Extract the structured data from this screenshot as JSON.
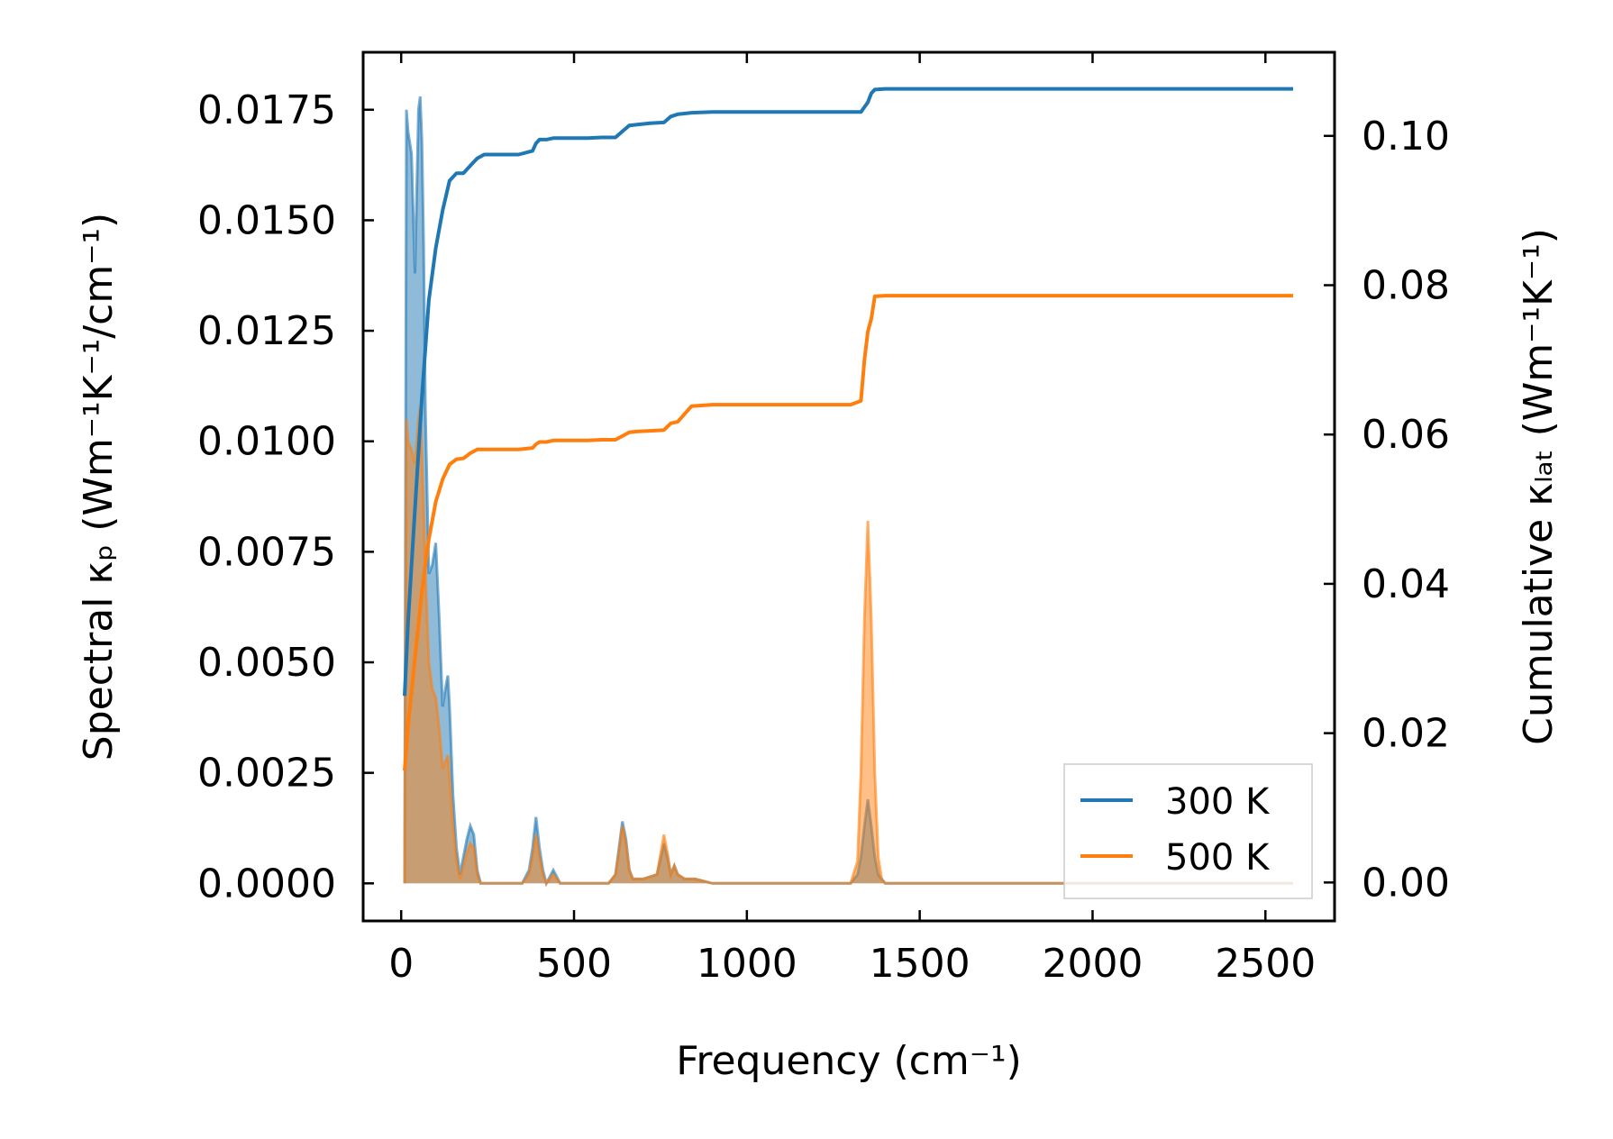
{
  "chart_data": {
    "type": "line",
    "xlabel": "Frequency (cm⁻¹)",
    "ylabel_left": "Spectral κₚ (Wm⁻¹K⁻¹/cm⁻¹)",
    "ylabel_right": "Cumulative κₗₐₜ (Wm⁻¹K⁻¹)",
    "xlim": [
      -110,
      2700
    ],
    "ylim_left": [
      -0.00085,
      0.0188
    ],
    "ylim_right": [
      -0.00515,
      0.1112
    ],
    "x_ticks": [
      0,
      500,
      1000,
      1500,
      2000,
      2500
    ],
    "x_tick_labels": [
      "0",
      "500",
      "1000",
      "1500",
      "2000",
      "2500"
    ],
    "y_left_ticks": [
      0,
      0.0025,
      0.005,
      0.0075,
      0.01,
      0.0125,
      0.015,
      0.0175
    ],
    "y_left_tick_labels": [
      "0.0000",
      "0.0025",
      "0.0050",
      "0.0075",
      "0.0100",
      "0.0125",
      "0.0150",
      "0.0175"
    ],
    "y_right_ticks": [
      0,
      0.02,
      0.04,
      0.06,
      0.08,
      0.1
    ],
    "y_right_tick_labels": [
      "0.00",
      "0.02",
      "0.04",
      "0.06",
      "0.08",
      "0.10"
    ],
    "legend_position": "lower-right",
    "series": [
      {
        "name": "300 K",
        "color": "#1f77b4",
        "cumulative": {
          "x": [
            10,
            20,
            40,
            60,
            80,
            100,
            120,
            140,
            160,
            180,
            200,
            220,
            240,
            260,
            280,
            300,
            340,
            380,
            390,
            400,
            420,
            440,
            460,
            500,
            540,
            580,
            620,
            640,
            660,
            680,
            720,
            760,
            780,
            800,
            840,
            900,
            1000,
            1300,
            1330,
            1350,
            1360,
            1370,
            1400,
            1500,
            2000,
            2580
          ],
          "y": [
            0.025,
            0.035,
            0.05,
            0.065,
            0.078,
            0.085,
            0.09,
            0.094,
            0.095,
            0.095,
            0.096,
            0.097,
            0.0975,
            0.0975,
            0.0975,
            0.0975,
            0.0975,
            0.098,
            0.099,
            0.0995,
            0.0995,
            0.0997,
            0.0997,
            0.0997,
            0.0997,
            0.0998,
            0.0998,
            0.1006,
            0.1014,
            0.1015,
            0.1017,
            0.1018,
            0.1026,
            0.1029,
            0.1031,
            0.1032,
            0.1032,
            0.1032,
            0.1032,
            0.1045,
            0.1057,
            0.1062,
            0.1063,
            0.1063,
            0.1063,
            0.1063
          ]
        },
        "spectral": {
          "x": [
            10,
            15,
            20,
            30,
            40,
            50,
            55,
            60,
            65,
            70,
            80,
            90,
            100,
            110,
            120,
            130,
            135,
            140,
            150,
            160,
            170,
            180,
            190,
            200,
            210,
            220,
            230,
            250,
            300,
            350,
            370,
            380,
            390,
            400,
            410,
            420,
            440,
            460,
            500,
            600,
            620,
            630,
            640,
            650,
            660,
            670,
            700,
            740,
            760,
            770,
            780,
            790,
            800,
            820,
            850,
            900,
            1000,
            1200,
            1300,
            1320,
            1330,
            1340,
            1350,
            1360,
            1370,
            1380,
            1390,
            1400,
            1500,
            2000,
            2580
          ],
          "y": [
            0.0,
            0.0175,
            0.017,
            0.0165,
            0.0138,
            0.0175,
            0.0178,
            0.0168,
            0.0145,
            0.0107,
            0.007,
            0.0072,
            0.0077,
            0.006,
            0.004,
            0.0045,
            0.0047,
            0.004,
            0.002,
            0.0008,
            0.0002,
            0.0006,
            0.001,
            0.0013,
            0.0011,
            0.0003,
            0.0,
            0.0,
            0.0,
            0.0,
            0.0003,
            0.0008,
            0.0015,
            0.0008,
            0.0003,
            0.0,
            0.0003,
            0.0,
            0.0,
            0.0,
            0.0002,
            0.0008,
            0.0014,
            0.001,
            0.0003,
            0.0001,
            0.0001,
            0.0002,
            0.0009,
            0.0006,
            0.0002,
            0.0004,
            0.0002,
            0.0001,
            0.0001,
            0.0,
            0.0,
            0.0,
            0.0,
            0.0002,
            0.0006,
            0.0013,
            0.0019,
            0.0013,
            0.0006,
            0.0002,
            0.0001,
            0.0,
            0.0,
            0.0,
            0.0
          ]
        }
      },
      {
        "name": "500 K",
        "color": "#ff7f0e",
        "cumulative": {
          "x": [
            10,
            20,
            40,
            60,
            80,
            100,
            120,
            140,
            160,
            180,
            200,
            220,
            240,
            260,
            280,
            300,
            340,
            380,
            390,
            400,
            420,
            440,
            460,
            500,
            540,
            580,
            620,
            640,
            660,
            680,
            720,
            760,
            780,
            800,
            840,
            900,
            1000,
            1300,
            1330,
            1340,
            1350,
            1360,
            1370,
            1400,
            1500,
            2000,
            2580
          ],
          "y": [
            0.015,
            0.021,
            0.03,
            0.039,
            0.046,
            0.051,
            0.054,
            0.056,
            0.0567,
            0.0568,
            0.0575,
            0.058,
            0.058,
            0.058,
            0.058,
            0.058,
            0.058,
            0.0582,
            0.0587,
            0.059,
            0.059,
            0.0592,
            0.0592,
            0.0592,
            0.0592,
            0.0593,
            0.0593,
            0.0598,
            0.0603,
            0.0604,
            0.0605,
            0.0606,
            0.0615,
            0.0617,
            0.0638,
            0.064,
            0.064,
            0.064,
            0.0645,
            0.07,
            0.0738,
            0.0755,
            0.0785,
            0.0786,
            0.0786,
            0.0786,
            0.0786
          ]
        },
        "spectral": {
          "x": [
            10,
            15,
            20,
            30,
            40,
            50,
            55,
            60,
            65,
            70,
            80,
            90,
            100,
            110,
            120,
            130,
            135,
            140,
            150,
            160,
            170,
            180,
            190,
            200,
            210,
            220,
            230,
            250,
            300,
            350,
            370,
            380,
            390,
            400,
            410,
            420,
            440,
            460,
            500,
            600,
            620,
            630,
            640,
            650,
            660,
            670,
            700,
            740,
            760,
            770,
            780,
            790,
            800,
            820,
            850,
            900,
            1000,
            1200,
            1300,
            1320,
            1330,
            1340,
            1350,
            1360,
            1370,
            1380,
            1390,
            1400,
            1500,
            2000,
            2580
          ],
          "y": [
            0.0,
            0.0105,
            0.01,
            0.0098,
            0.0095,
            0.0105,
            0.0108,
            0.0097,
            0.0085,
            0.007,
            0.005,
            0.0044,
            0.0042,
            0.0035,
            0.0026,
            0.0028,
            0.0029,
            0.0024,
            0.0013,
            0.0005,
            0.0001,
            0.0004,
            0.0007,
            0.0009,
            0.0008,
            0.0002,
            0.0,
            0.0,
            0.0,
            0.0,
            0.0002,
            0.0006,
            0.0011,
            0.0006,
            0.0002,
            0.0,
            0.0002,
            0.0,
            0.0,
            0.0,
            0.0002,
            0.0007,
            0.0013,
            0.0009,
            0.0003,
            0.0001,
            0.0001,
            0.0002,
            0.0011,
            0.0007,
            0.0002,
            0.0004,
            0.0002,
            0.0001,
            0.0001,
            0.0,
            0.0,
            0.0,
            0.0,
            0.0005,
            0.0025,
            0.006,
            0.0082,
            0.006,
            0.0025,
            0.0006,
            0.0001,
            0.0,
            0.0,
            0.0,
            0.0
          ]
        }
      }
    ]
  }
}
